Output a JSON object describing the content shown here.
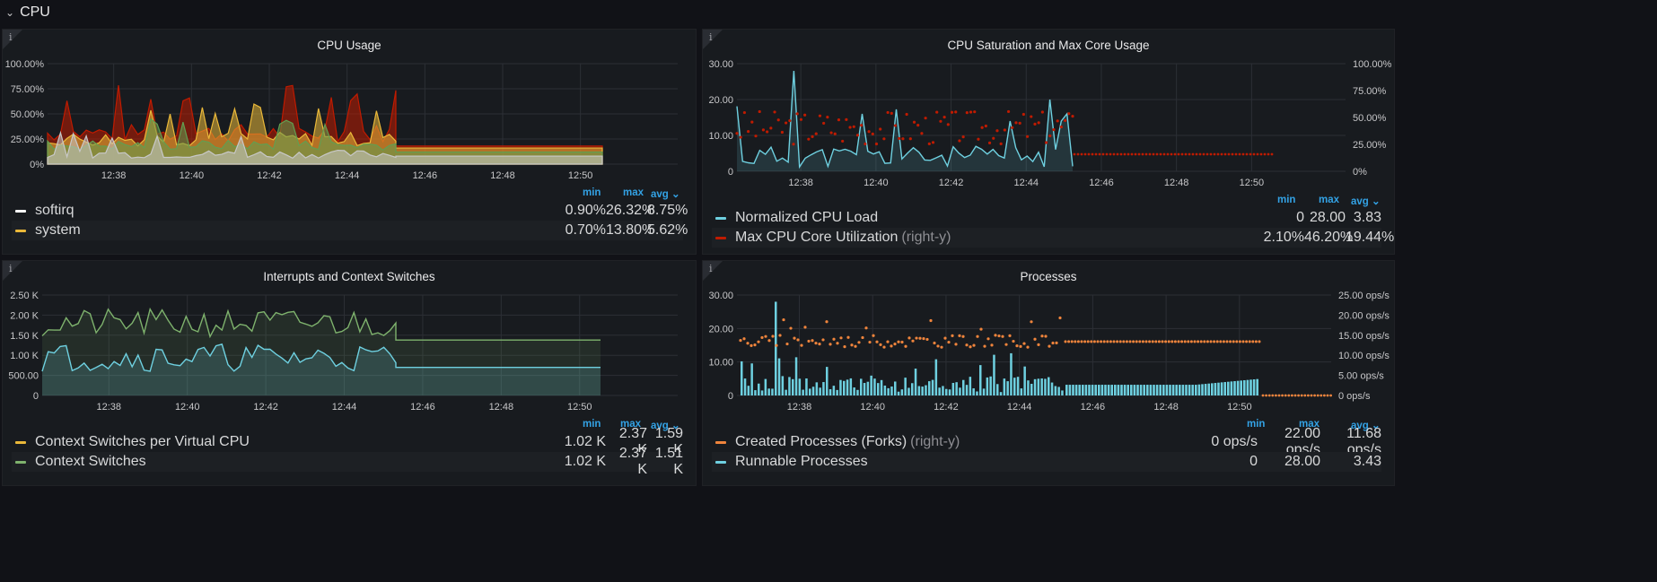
{
  "row": {
    "title": "CPU"
  },
  "panels": [
    {
      "title": "CPU Usage",
      "info_icon": "i",
      "y_ticks": [
        "100.00%",
        "75.00%",
        "50.00%",
        "25.00%",
        "0%"
      ],
      "x_ticks": [
        "12:38",
        "12:40",
        "12:42",
        "12:44",
        "12:46",
        "12:48",
        "12:50"
      ],
      "legend_headers": {
        "min": "min",
        "max": "max",
        "avg": "avg ⌄"
      },
      "legend": [
        {
          "name": "softirq",
          "color": "#ffffff",
          "min": "0.90%",
          "max": "26.32%",
          "avg": "8.75%"
        },
        {
          "name": "system",
          "color": "#eab839",
          "min": "0.70%",
          "max": "13.80%",
          "avg": "5.62%"
        }
      ]
    },
    {
      "title": "CPU Saturation and Max Core Usage",
      "info_icon": "i",
      "y_ticks": [
        "30.00",
        "20.00",
        "10.00",
        "0"
      ],
      "y2_ticks": [
        "100.00%",
        "75.00%",
        "50.00%",
        "25.00%",
        "0%"
      ],
      "x_ticks": [
        "12:38",
        "12:40",
        "12:42",
        "12:44",
        "12:46",
        "12:48",
        "12:50"
      ],
      "legend_headers": {
        "min": "min",
        "max": "max",
        "avg": "avg ⌄"
      },
      "legend": [
        {
          "name": "Normalized CPU Load",
          "sub": "",
          "color": "#6ed0e0",
          "min": "0",
          "max": "28.00",
          "avg": "3.83"
        },
        {
          "name": "Max CPU Core Utilization",
          "sub": "(right-y)",
          "color": "#bf1b00",
          "min": "2.10%",
          "max": "46.20%",
          "avg": "19.44%"
        }
      ]
    },
    {
      "title": "Interrupts and Context Switches",
      "info_icon": "i",
      "y_ticks": [
        "2.50 K",
        "2.00 K",
        "1.50 K",
        "1.00 K",
        "500.00",
        "0"
      ],
      "x_ticks": [
        "12:38",
        "12:40",
        "12:42",
        "12:44",
        "12:46",
        "12:48",
        "12:50"
      ],
      "legend_headers": {
        "min": "min",
        "max": "max",
        "avg": "avg ⌄"
      },
      "legend": [
        {
          "name": "Context Switches per Virtual CPU",
          "color": "#eab839",
          "min": "1.02 K",
          "max": "2.37 K",
          "avg": "1.59 K"
        },
        {
          "name": "Context Switches",
          "color": "#7eb26d",
          "min": "1.02 K",
          "max": "2.37 K",
          "avg": "1.51 K"
        }
      ]
    },
    {
      "title": "Processes",
      "info_icon": "i",
      "y_ticks": [
        "30.00",
        "20.00",
        "10.00",
        "0"
      ],
      "y2_ticks": [
        "25.00 ops/s",
        "20.00 ops/s",
        "15.00 ops/s",
        "10.00 ops/s",
        "5.00 ops/s",
        "0 ops/s"
      ],
      "x_ticks": [
        "12:38",
        "12:40",
        "12:42",
        "12:44",
        "12:46",
        "12:48",
        "12:50"
      ],
      "legend_headers": {
        "min": "min",
        "max": "max",
        "avg": "avg ⌄"
      },
      "legend": [
        {
          "name": "Created Processes (Forks)",
          "sub": "(right-y)",
          "color": "#ef843c",
          "min": "0 ops/s",
          "max": "22.00 ops/s",
          "avg": "11.68 ops/s"
        },
        {
          "name": "Runnable Processes",
          "sub": "",
          "color": "#6ed0e0",
          "min": "0",
          "max": "28.00",
          "avg": "3.43"
        }
      ]
    }
  ],
  "colors": {
    "softirq": "#ffffff",
    "system": "#eab839",
    "user": "#629e51",
    "iowait": "#bf1b00",
    "load": "#6ed0e0",
    "core": "#bf1b00",
    "ctx_per_vcpu": "#eab839",
    "ctx": "#7eb26d",
    "interrupts": "#6ed0e0",
    "forks": "#ef843c",
    "runnable": "#6ed0e0"
  }
}
